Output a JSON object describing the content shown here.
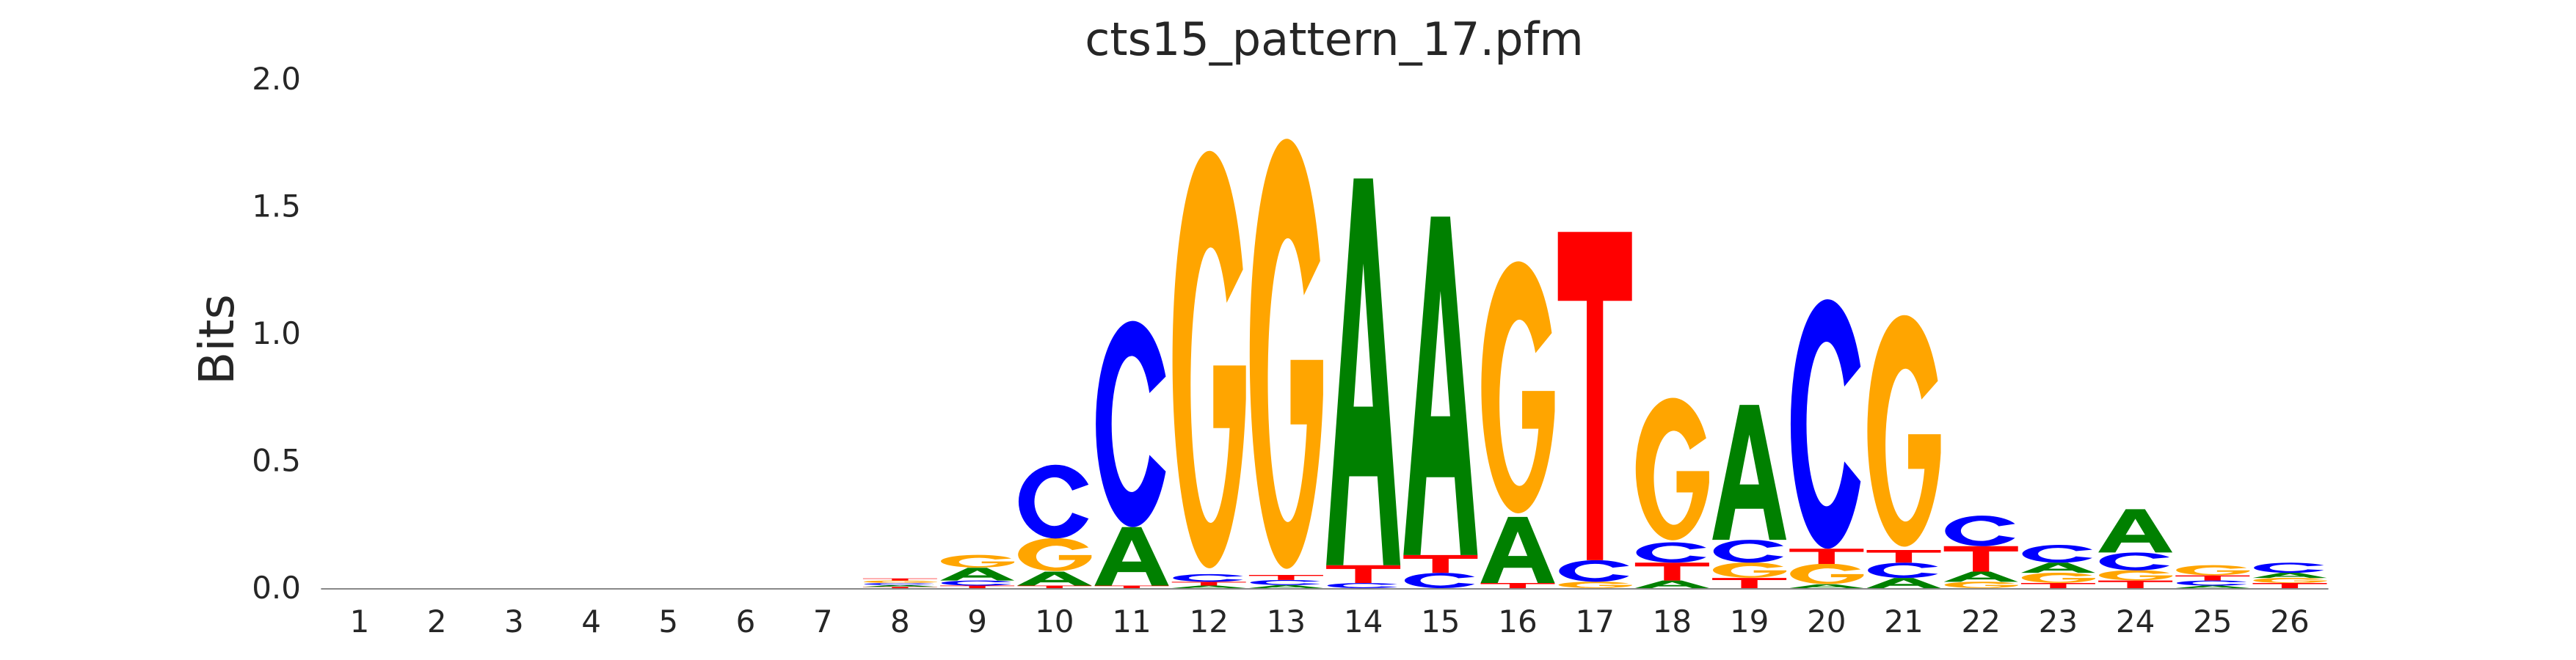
{
  "chart_data": {
    "type": "sequence-logo",
    "title": "cts15_pattern_17.pfm",
    "ylabel": "Bits",
    "xlabel": "",
    "ylim": [
      0,
      2.0
    ],
    "yticks": [
      "0.0",
      "0.5",
      "1.0",
      "1.5",
      "2.0"
    ],
    "positions": [
      "1",
      "2",
      "3",
      "4",
      "5",
      "6",
      "7",
      "8",
      "9",
      "10",
      "11",
      "12",
      "13",
      "14",
      "15",
      "16",
      "17",
      "18",
      "19",
      "20",
      "21",
      "22",
      "23",
      "24",
      "25",
      "26"
    ],
    "colors": {
      "A": "#008000",
      "C": "#0000ff",
      "G": "#ffa500",
      "T": "#ff0000"
    },
    "stacks": [
      [],
      [],
      [],
      [],
      [],
      [],
      [],
      [
        [
          "T",
          0.005
        ],
        [
          "A",
          0.007
        ],
        [
          "C",
          0.008
        ],
        [
          "G",
          0.01
        ],
        [
          "T",
          0.008
        ]
      ],
      [
        [
          "T",
          0.01
        ],
        [
          "C",
          0.02
        ],
        [
          "A",
          0.05
        ],
        [
          "G",
          0.05
        ]
      ],
      [
        [
          "T",
          0.01
        ],
        [
          "A",
          0.055
        ],
        [
          "G",
          0.13
        ],
        [
          "C",
          0.29
        ]
      ],
      [
        [
          "T",
          0.01
        ],
        [
          "A",
          0.23
        ],
        [
          "C",
          0.81
        ]
      ],
      [
        [
          "A",
          0.01
        ],
        [
          "T",
          0.015
        ],
        [
          "C",
          0.03
        ],
        [
          "G",
          1.64
        ]
      ],
      [
        [
          "A",
          0.012
        ],
        [
          "C",
          0.02
        ],
        [
          "T",
          0.02
        ],
        [
          "G",
          1.69
        ]
      ],
      [
        [
          "C",
          0.02
        ],
        [
          "T",
          0.07
        ],
        [
          "A",
          1.52
        ]
      ],
      [
        [
          "C",
          0.06
        ],
        [
          "T",
          0.07
        ],
        [
          "A",
          1.33
        ]
      ],
      [
        [
          "T",
          0.02
        ],
        [
          "A",
          0.26
        ],
        [
          "G",
          0.99
        ]
      ],
      [
        [
          "G",
          0.025
        ],
        [
          "C",
          0.085
        ],
        [
          "T",
          1.29
        ]
      ],
      [
        [
          "A",
          0.03
        ],
        [
          "T",
          0.07
        ],
        [
          "C",
          0.08
        ],
        [
          "G",
          0.56
        ]
      ],
      [
        [
          "T",
          0.04
        ],
        [
          "G",
          0.06
        ],
        [
          "C",
          0.09
        ],
        [
          "A",
          0.53
        ]
      ],
      [
        [
          "A",
          0.015
        ],
        [
          "G",
          0.08
        ],
        [
          "T",
          0.06
        ],
        [
          "C",
          0.98
        ]
      ],
      [
        [
          "A",
          0.04
        ],
        [
          "C",
          0.06
        ],
        [
          "T",
          0.05
        ],
        [
          "G",
          0.91
        ]
      ],
      [
        [
          "G",
          0.025
        ],
        [
          "A",
          0.04
        ],
        [
          "T",
          0.1
        ],
        [
          "C",
          0.12
        ]
      ],
      [
        [
          "T",
          0.02
        ],
        [
          "G",
          0.04
        ],
        [
          "A",
          0.04
        ],
        [
          "C",
          0.07
        ]
      ],
      [
        [
          "T",
          0.03
        ],
        [
          "G",
          0.04
        ],
        [
          "C",
          0.07
        ],
        [
          "A",
          0.17
        ]
      ],
      [
        [
          "A",
          0.01
        ],
        [
          "C",
          0.02
        ],
        [
          "T",
          0.02
        ],
        [
          "G",
          0.04
        ]
      ],
      [
        [
          "T",
          0.02
        ],
        [
          "G",
          0.02
        ],
        [
          "A",
          0.02
        ],
        [
          "C",
          0.04
        ]
      ]
    ]
  }
}
